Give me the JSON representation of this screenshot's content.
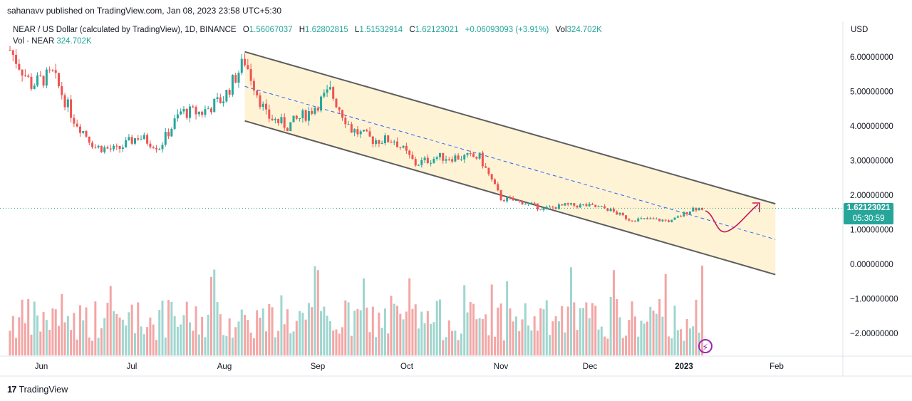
{
  "header": {
    "published": "sahanavv published on TradingView.com, Jan 08, 2023 23:58 UTC+5:30"
  },
  "legend": {
    "symbol": "NEAR / US Dollar (calculated by TradingView), 1D, BINANCE",
    "o_label": "O",
    "o": "1.56067037",
    "h_label": "H",
    "h": "1.62802815",
    "l_label": "L",
    "l": "1.51532914",
    "c_label": "C",
    "c": "1.62123021",
    "change": "+0.06093093 (+3.91%)",
    "vol_label": "Vol",
    "vol": "324.702K",
    "vol_series_label": "Vol · NEAR",
    "vol_series": "324.702K"
  },
  "axis": {
    "currency": "USD",
    "price_ticks": [
      "6.00000000",
      "5.00000000",
      "4.00000000",
      "3.00000000",
      "2.00000000",
      "1.00000000",
      "0.00000000",
      "−1.00000000",
      "−2.00000000"
    ],
    "time_ticks": [
      "Jun",
      "Jul",
      "Aug",
      "Sep",
      "Oct",
      "Nov",
      "Dec",
      "2023",
      "Feb"
    ]
  },
  "last_price": {
    "price": "1.62123021",
    "countdown": "05:30:59"
  },
  "footer": {
    "brand": "TradingView",
    "logo": "17"
  },
  "colors": {
    "up": "#26a69a",
    "down": "#ef5350",
    "channel_fill": "#fff3d6",
    "channel_line": "#5d5d5d",
    "midline": "#2962ff",
    "arrow": "#c2185b"
  },
  "icons": {
    "bolt": "bolt-icon"
  },
  "chart_data": {
    "type": "candlestick",
    "title": "NEAR / US Dollar (calculated by TradingView), 1D, BINANCE",
    "ylabel": "USD",
    "ylim": [
      -2.6,
      6.7
    ],
    "x": [
      "May 25",
      "Jun 1",
      "Jun 8",
      "Jun 15",
      "Jun 22",
      "Jun 29",
      "Jul 6",
      "Jul 13",
      "Jul 20",
      "Jul 27",
      "Aug 3",
      "Aug 10",
      "Aug 17",
      "Aug 24",
      "Aug 31",
      "Sep 7",
      "Sep 14",
      "Sep 21",
      "Sep 28",
      "Oct 5",
      "Oct 12",
      "Oct 19",
      "Oct 26",
      "Nov 2",
      "Nov 9",
      "Nov 16",
      "Nov 23",
      "Nov 30",
      "Dec 7",
      "Dec 14",
      "Dec 21",
      "Dec 28",
      "Jan 4"
    ],
    "close": [
      6.2,
      5.2,
      5.5,
      4.2,
      3.4,
      3.3,
      3.7,
      3.4,
      4.4,
      4.4,
      4.8,
      5.9,
      4.3,
      4.0,
      4.4,
      5.0,
      3.9,
      3.6,
      3.6,
      2.9,
      3.1,
      3.1,
      3.1,
      1.9,
      1.8,
      1.6,
      1.7,
      1.7,
      1.6,
      1.3,
      1.3,
      1.25,
      1.62
    ],
    "channel": {
      "upper": [
        [
          "Aug 10",
          6.15
        ],
        [
          "Jan 31",
          1.75
        ]
      ],
      "lower": [
        [
          "Aug 10",
          4.15
        ],
        [
          "Jan 31",
          -0.3
        ]
      ],
      "mid": [
        [
          "Aug 10",
          5.15
        ],
        [
          "Jan 31",
          0.72
        ]
      ]
    },
    "last_price": 1.62123021
  }
}
